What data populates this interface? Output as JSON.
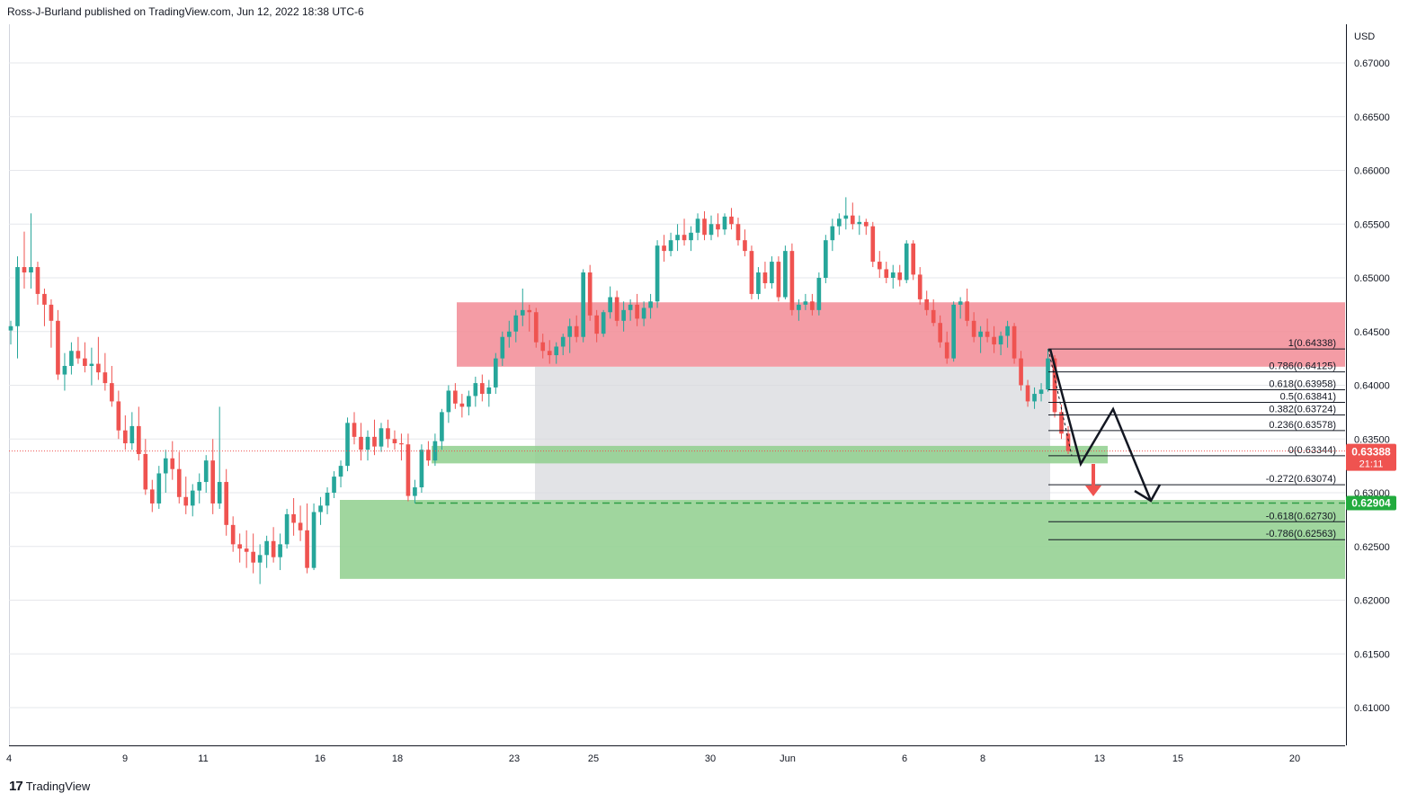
{
  "header": {
    "text": "Ross-J-Burland published on TradingView.com, Jun 12, 2022 18:38 UTC-6"
  },
  "footer": {
    "brand": "TradingView",
    "logo_glyph": "17"
  },
  "colors": {
    "up": "#26a69a",
    "down": "#ef5350",
    "grid": "#e6e7eb",
    "resistance_zone": "#f28b95",
    "support_zone": "#8fcf8d",
    "range_box": "#d8d9de",
    "price_label_bg": "#ef5350",
    "target_label_bg": "#22ab3e"
  },
  "chart_data": {
    "type": "candlestick",
    "symbol_currency": "USD",
    "y_axis": {
      "unit": "USD",
      "ticks": [
        "0.67000",
        "0.66500",
        "0.66000",
        "0.65500",
        "0.65000",
        "0.64500",
        "0.64000",
        "0.63500",
        "0.63000",
        "0.62500",
        "0.62000",
        "0.61500",
        "0.61000"
      ],
      "ylim": [
        0.6055,
        0.6722
      ]
    },
    "x_axis": {
      "ticks": [
        "4",
        "9",
        "11",
        "16",
        "18",
        "23",
        "25",
        "30",
        "Jun",
        "6",
        "8",
        "13",
        "15",
        "20"
      ]
    },
    "last_price": {
      "value": "0.63388",
      "countdown": "21:11"
    },
    "target_price": {
      "value": "0.62904"
    },
    "fibonacci": [
      {
        "label": "1(0.64338)",
        "value": 0.64338
      },
      {
        "label": "0.786(0.64125)",
        "value": 0.64125
      },
      {
        "label": "0.618(0.63958)",
        "value": 0.63958
      },
      {
        "label": "0.5(0.63841)",
        "value": 0.63841
      },
      {
        "label": "0.382(0.63724)",
        "value": 0.63724
      },
      {
        "label": "0.236(0.63578)",
        "value": 0.63578
      },
      {
        "label": "0(0.63344)",
        "value": 0.63344
      },
      {
        "label": "-0.272(0.63074)",
        "value": 0.63074
      },
      {
        "label": "-0.618(0.62730)",
        "value": 0.6273
      },
      {
        "label": "-0.786(0.62563)",
        "value": 0.62563
      }
    ],
    "zones": [
      {
        "name": "resistance",
        "top": 0.64772,
        "bottom": 0.64173
      },
      {
        "name": "range",
        "top": 0.64173,
        "bottom": 0.62933
      },
      {
        "name": "support-small",
        "top": 0.63436,
        "bottom": 0.63273
      },
      {
        "name": "support",
        "top": 0.62933,
        "bottom": 0.62198
      }
    ],
    "candles": [
      [
        0.6451,
        0.646,
        0.6438,
        0.6455
      ],
      [
        0.6455,
        0.652,
        0.6425,
        0.651
      ],
      [
        0.651,
        0.6543,
        0.649,
        0.6505
      ],
      [
        0.6505,
        0.656,
        0.649,
        0.651
      ],
      [
        0.651,
        0.6515,
        0.6475,
        0.6485
      ],
      [
        0.6485,
        0.649,
        0.6455,
        0.6475
      ],
      [
        0.6475,
        0.648,
        0.6435,
        0.646
      ],
      [
        0.646,
        0.647,
        0.6405,
        0.641
      ],
      [
        0.641,
        0.643,
        0.6395,
        0.6418
      ],
      [
        0.6418,
        0.644,
        0.641,
        0.6432
      ],
      [
        0.6432,
        0.6445,
        0.642,
        0.6425
      ],
      [
        0.6425,
        0.644,
        0.6412,
        0.6418
      ],
      [
        0.6418,
        0.6435,
        0.64,
        0.642
      ],
      [
        0.642,
        0.6445,
        0.6405,
        0.6412
      ],
      [
        0.6412,
        0.643,
        0.6395,
        0.6402
      ],
      [
        0.6402,
        0.6418,
        0.638,
        0.6385
      ],
      [
        0.6385,
        0.6395,
        0.635,
        0.6358
      ],
      [
        0.6358,
        0.6372,
        0.634,
        0.6346
      ],
      [
        0.6346,
        0.6375,
        0.634,
        0.6362
      ],
      [
        0.6362,
        0.638,
        0.633,
        0.6336
      ],
      [
        0.6336,
        0.635,
        0.6298,
        0.6303
      ],
      [
        0.6303,
        0.6312,
        0.6282,
        0.629
      ],
      [
        0.629,
        0.6325,
        0.6285,
        0.6318
      ],
      [
        0.6318,
        0.634,
        0.63,
        0.6332
      ],
      [
        0.6332,
        0.6348,
        0.6312,
        0.6322
      ],
      [
        0.6322,
        0.6338,
        0.629,
        0.6296
      ],
      [
        0.6296,
        0.6315,
        0.628,
        0.6288
      ],
      [
        0.6288,
        0.6308,
        0.6278,
        0.6302
      ],
      [
        0.6302,
        0.6318,
        0.629,
        0.631
      ],
      [
        0.631,
        0.6335,
        0.63,
        0.633
      ],
      [
        0.633,
        0.635,
        0.628,
        0.629
      ],
      [
        0.629,
        0.638,
        0.6285,
        0.631
      ],
      [
        0.631,
        0.6322,
        0.626,
        0.627
      ],
      [
        0.627,
        0.6278,
        0.6245,
        0.6252
      ],
      [
        0.6252,
        0.6262,
        0.6235,
        0.6248
      ],
      [
        0.6248,
        0.6265,
        0.623,
        0.6245
      ],
      [
        0.6245,
        0.6262,
        0.6225,
        0.6235
      ],
      [
        0.6235,
        0.6252,
        0.6215,
        0.6242
      ],
      [
        0.6242,
        0.626,
        0.623,
        0.6255
      ],
      [
        0.6255,
        0.6268,
        0.6235,
        0.624
      ],
      [
        0.624,
        0.6262,
        0.6228,
        0.6252
      ],
      [
        0.6252,
        0.6285,
        0.6248,
        0.628
      ],
      [
        0.628,
        0.6295,
        0.626,
        0.6272
      ],
      [
        0.6272,
        0.6288,
        0.6255,
        0.6265
      ],
      [
        0.6265,
        0.629,
        0.6225,
        0.623
      ],
      [
        0.623,
        0.629,
        0.6228,
        0.6282
      ],
      [
        0.6282,
        0.6296,
        0.627,
        0.6288
      ],
      [
        0.6288,
        0.6305,
        0.628,
        0.63
      ],
      [
        0.63,
        0.632,
        0.6295,
        0.6315
      ],
      [
        0.6315,
        0.633,
        0.6305,
        0.6325
      ],
      [
        0.6325,
        0.637,
        0.632,
        0.6365
      ],
      [
        0.6365,
        0.6375,
        0.6345,
        0.6352
      ],
      [
        0.6352,
        0.6365,
        0.633,
        0.634
      ],
      [
        0.634,
        0.6358,
        0.633,
        0.6352
      ],
      [
        0.6352,
        0.6368,
        0.6335,
        0.6343
      ],
      [
        0.6343,
        0.6365,
        0.6338,
        0.636
      ],
      [
        0.636,
        0.6368,
        0.6342,
        0.635
      ],
      [
        0.635,
        0.6358,
        0.634,
        0.6346
      ],
      [
        0.6346,
        0.6355,
        0.633,
        0.6345
      ],
      [
        0.6345,
        0.6355,
        0.6292,
        0.6297
      ],
      [
        0.6297,
        0.6312,
        0.629,
        0.6305
      ],
      [
        0.6305,
        0.6345,
        0.63,
        0.634
      ],
      [
        0.634,
        0.6348,
        0.6325,
        0.633
      ],
      [
        0.633,
        0.6355,
        0.6325,
        0.6348
      ],
      [
        0.6348,
        0.6378,
        0.634,
        0.6375
      ],
      [
        0.6375,
        0.64,
        0.6365,
        0.6395
      ],
      [
        0.6395,
        0.6402,
        0.6378,
        0.6383
      ],
      [
        0.6383,
        0.6392,
        0.637,
        0.638
      ],
      [
        0.638,
        0.6395,
        0.6372,
        0.639
      ],
      [
        0.639,
        0.6408,
        0.638,
        0.6402
      ],
      [
        0.6402,
        0.641,
        0.6385,
        0.6392
      ],
      [
        0.6392,
        0.6405,
        0.638,
        0.6398
      ],
      [
        0.6398,
        0.643,
        0.6392,
        0.6425
      ],
      [
        0.6425,
        0.645,
        0.6418,
        0.6445
      ],
      [
        0.6445,
        0.646,
        0.6435,
        0.645
      ],
      [
        0.645,
        0.647,
        0.644,
        0.6465
      ],
      [
        0.6465,
        0.649,
        0.6455,
        0.647
      ],
      [
        0.647,
        0.6475,
        0.645,
        0.6468
      ],
      [
        0.6468,
        0.6472,
        0.6435,
        0.644
      ],
      [
        0.644,
        0.6448,
        0.6425,
        0.6432
      ],
      [
        0.6432,
        0.6442,
        0.642,
        0.6428
      ],
      [
        0.6428,
        0.644,
        0.642,
        0.6436
      ],
      [
        0.6436,
        0.6448,
        0.6428,
        0.6445
      ],
      [
        0.6445,
        0.6462,
        0.643,
        0.6455
      ],
      [
        0.6455,
        0.6465,
        0.644,
        0.6445
      ],
      [
        0.6445,
        0.6508,
        0.644,
        0.6505
      ],
      [
        0.6505,
        0.6512,
        0.646,
        0.6465
      ],
      [
        0.6465,
        0.647,
        0.644,
        0.6448
      ],
      [
        0.6448,
        0.647,
        0.6445,
        0.6468
      ],
      [
        0.6468,
        0.6492,
        0.6462,
        0.6482
      ],
      [
        0.6482,
        0.6488,
        0.6455,
        0.646
      ],
      [
        0.646,
        0.6478,
        0.645,
        0.647
      ],
      [
        0.647,
        0.648,
        0.646,
        0.6475
      ],
      [
        0.6475,
        0.6485,
        0.6455,
        0.6462
      ],
      [
        0.6462,
        0.6478,
        0.6455,
        0.6472
      ],
      [
        0.6472,
        0.6485,
        0.6462,
        0.6478
      ],
      [
        0.6478,
        0.6535,
        0.6472,
        0.653
      ],
      [
        0.653,
        0.654,
        0.6515,
        0.6525
      ],
      [
        0.6525,
        0.6542,
        0.652,
        0.6535
      ],
      [
        0.6535,
        0.655,
        0.6525,
        0.654
      ],
      [
        0.654,
        0.6555,
        0.653,
        0.6535
      ],
      [
        0.6535,
        0.6548,
        0.6525,
        0.6542
      ],
      [
        0.6542,
        0.656,
        0.6535,
        0.6555
      ],
      [
        0.6555,
        0.6562,
        0.6535,
        0.654
      ],
      [
        0.654,
        0.6558,
        0.6535,
        0.655
      ],
      [
        0.655,
        0.656,
        0.6538,
        0.6545
      ],
      [
        0.6545,
        0.656,
        0.654,
        0.6557
      ],
      [
        0.6557,
        0.6565,
        0.6545,
        0.655
      ],
      [
        0.655,
        0.6556,
        0.653,
        0.6535
      ],
      [
        0.6535,
        0.6545,
        0.652,
        0.6525
      ],
      [
        0.6525,
        0.653,
        0.648,
        0.6485
      ],
      [
        0.6485,
        0.651,
        0.648,
        0.6505
      ],
      [
        0.6505,
        0.6515,
        0.649,
        0.6495
      ],
      [
        0.6495,
        0.652,
        0.649,
        0.6515
      ],
      [
        0.6515,
        0.652,
        0.6478,
        0.6482
      ],
      [
        0.6482,
        0.653,
        0.648,
        0.6525
      ],
      [
        0.6525,
        0.6532,
        0.6465,
        0.647
      ],
      [
        0.647,
        0.648,
        0.646,
        0.6475
      ],
      [
        0.6475,
        0.6485,
        0.647,
        0.6478
      ],
      [
        0.6478,
        0.6485,
        0.6465,
        0.647
      ],
      [
        0.647,
        0.6505,
        0.6465,
        0.65
      ],
      [
        0.65,
        0.654,
        0.6495,
        0.6535
      ],
      [
        0.6535,
        0.6555,
        0.6525,
        0.6548
      ],
      [
        0.6548,
        0.656,
        0.654,
        0.6555
      ],
      [
        0.6555,
        0.6575,
        0.6545,
        0.6558
      ],
      [
        0.6558,
        0.657,
        0.6545,
        0.655
      ],
      [
        0.655,
        0.6558,
        0.654,
        0.6552
      ],
      [
        0.6552,
        0.6555,
        0.654,
        0.6548
      ],
      [
        0.6548,
        0.6552,
        0.651,
        0.6515
      ],
      [
        0.6515,
        0.6525,
        0.65,
        0.6508
      ],
      [
        0.6508,
        0.6515,
        0.6495,
        0.65
      ],
      [
        0.65,
        0.6512,
        0.649,
        0.6505
      ],
      [
        0.6505,
        0.6512,
        0.6492,
        0.6498
      ],
      [
        0.6498,
        0.6535,
        0.6495,
        0.6532
      ],
      [
        0.6532,
        0.6535,
        0.6498,
        0.6503
      ],
      [
        0.6503,
        0.651,
        0.6475,
        0.648
      ],
      [
        0.648,
        0.6488,
        0.6465,
        0.647
      ],
      [
        0.647,
        0.648,
        0.6455,
        0.6458
      ],
      [
        0.6458,
        0.6465,
        0.6435,
        0.644
      ],
      [
        0.644,
        0.645,
        0.642,
        0.6425
      ],
      [
        0.6425,
        0.6478,
        0.6422,
        0.6475
      ],
      [
        0.6475,
        0.6482,
        0.6462,
        0.6478
      ],
      [
        0.6478,
        0.649,
        0.6455,
        0.646
      ],
      [
        0.646,
        0.6468,
        0.644,
        0.6445
      ],
      [
        0.6445,
        0.6455,
        0.643,
        0.645
      ],
      [
        0.645,
        0.6462,
        0.644,
        0.6445
      ],
      [
        0.6445,
        0.6455,
        0.643,
        0.6438
      ],
      [
        0.6438,
        0.645,
        0.6428,
        0.6446
      ],
      [
        0.6446,
        0.646,
        0.6435,
        0.6455
      ],
      [
        0.6455,
        0.6458,
        0.642,
        0.6425
      ],
      [
        0.6425,
        0.6432,
        0.6395,
        0.64
      ],
      [
        0.64,
        0.6405,
        0.638,
        0.6385
      ],
      [
        0.6385,
        0.6398,
        0.6378,
        0.6392
      ],
      [
        0.6392,
        0.6402,
        0.6385,
        0.6396
      ],
      [
        0.6396,
        0.6434,
        0.6394,
        0.6425
      ],
      [
        0.6425,
        0.6428,
        0.637,
        0.6375
      ],
      [
        0.6375,
        0.6382,
        0.635,
        0.6355
      ],
      [
        0.6355,
        0.6362,
        0.6336,
        0.6339
      ]
    ]
  }
}
